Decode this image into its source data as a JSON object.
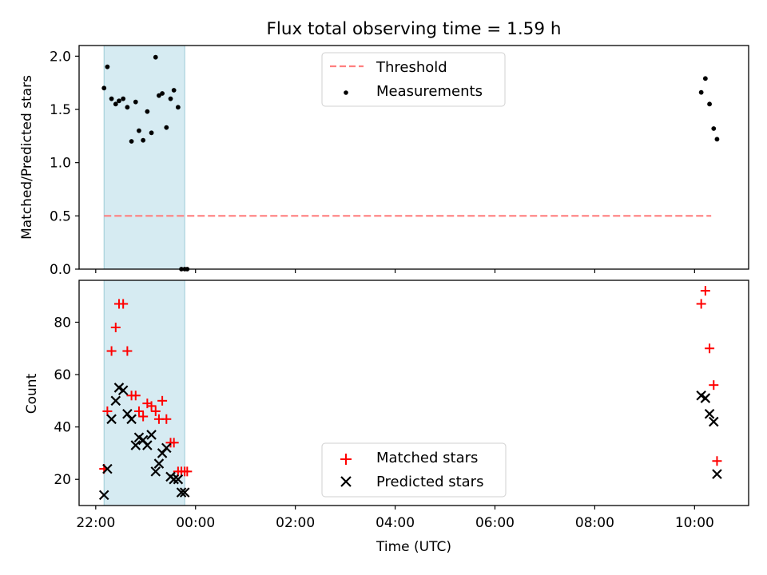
{
  "chart_data": [
    {
      "type": "scatter",
      "title": "Flux total observing time = 1.59 h",
      "xlabel": "",
      "ylabel": "Matched/Predicted stars",
      "xlim": [
        "21:40",
        "11:05"
      ],
      "ylim": [
        0,
        2.1
      ],
      "y_ticks": [
        "0.0",
        "0.5",
        "1.0",
        "1.5",
        "2.0"
      ],
      "shaded_span": [
        "22:10",
        "23:47"
      ],
      "legend_position": "upper center",
      "series": [
        {
          "name": "Threshold",
          "style": "dashed-line",
          "color": "#ff7f7f",
          "x": [
            "22:10",
            "10:20"
          ],
          "y": [
            0.5,
            0.5
          ]
        },
        {
          "name": "Measurements",
          "style": "dot",
          "color": "#000000",
          "x": [
            "22:10",
            "22:14",
            "22:19",
            "22:24",
            "22:28",
            "22:33",
            "22:38",
            "22:43",
            "22:48",
            "22:52",
            "22:57",
            "23:02",
            "23:07",
            "23:12",
            "23:16",
            "23:20",
            "23:25",
            "23:30",
            "23:34",
            "23:39",
            "23:43",
            "23:47",
            "23:50",
            "10:08",
            "10:13",
            "10:18",
            "10:23",
            "10:27"
          ],
          "y": [
            1.7,
            1.9,
            1.6,
            1.55,
            1.58,
            1.6,
            1.52,
            1.2,
            1.57,
            1.3,
            1.21,
            1.48,
            1.28,
            1.99,
            1.63,
            1.65,
            1.33,
            1.6,
            1.68,
            1.52,
            0.0,
            0.0,
            0.0,
            1.66,
            1.79,
            1.55,
            1.32,
            1.22
          ]
        }
      ]
    },
    {
      "type": "scatter",
      "title": "",
      "xlabel": "Time (UTC)",
      "ylabel": "Count",
      "xlim": [
        "21:40",
        "11:05"
      ],
      "ylim": [
        10,
        96
      ],
      "x_ticks": [
        "22:00",
        "00:00",
        "02:00",
        "04:00",
        "06:00",
        "08:00",
        "10:00"
      ],
      "y_ticks": [
        "20",
        "40",
        "60",
        "80"
      ],
      "shaded_span": [
        "22:10",
        "23:47"
      ],
      "legend_position": "lower center",
      "series": [
        {
          "name": "Matched stars",
          "marker": "plus",
          "color": "#ff0000",
          "x": [
            "22:10",
            "22:14",
            "22:19",
            "22:24",
            "22:28",
            "22:33",
            "22:38",
            "22:43",
            "22:48",
            "22:52",
            "22:57",
            "23:02",
            "23:07",
            "23:12",
            "23:16",
            "23:20",
            "23:25",
            "23:30",
            "23:34",
            "23:39",
            "23:43",
            "23:47",
            "23:50",
            "10:08",
            "10:13",
            "10:18",
            "10:23",
            "10:27"
          ],
          "y": [
            24,
            46,
            69,
            78,
            87,
            87,
            69,
            52,
            52,
            46,
            44,
            49,
            48,
            46,
            43,
            50,
            43,
            34,
            34,
            23,
            23,
            23,
            23,
            87,
            92,
            70,
            56,
            27
          ]
        },
        {
          "name": "Predicted stars",
          "marker": "x",
          "color": "#000000",
          "x": [
            "22:10",
            "22:14",
            "22:19",
            "22:24",
            "22:28",
            "22:33",
            "22:38",
            "22:43",
            "22:48",
            "22:52",
            "22:57",
            "23:02",
            "23:07",
            "23:12",
            "23:16",
            "23:20",
            "23:25",
            "23:30",
            "23:34",
            "23:39",
            "23:43",
            "23:47",
            "10:08",
            "10:13",
            "10:18",
            "10:23",
            "10:27"
          ],
          "y": [
            14,
            24,
            43,
            50,
            55,
            54,
            45,
            43,
            33,
            36,
            35,
            33,
            37,
            23,
            26,
            30,
            32,
            21,
            20,
            20,
            15,
            15,
            52,
            51,
            45,
            42,
            22
          ]
        }
      ]
    }
  ]
}
